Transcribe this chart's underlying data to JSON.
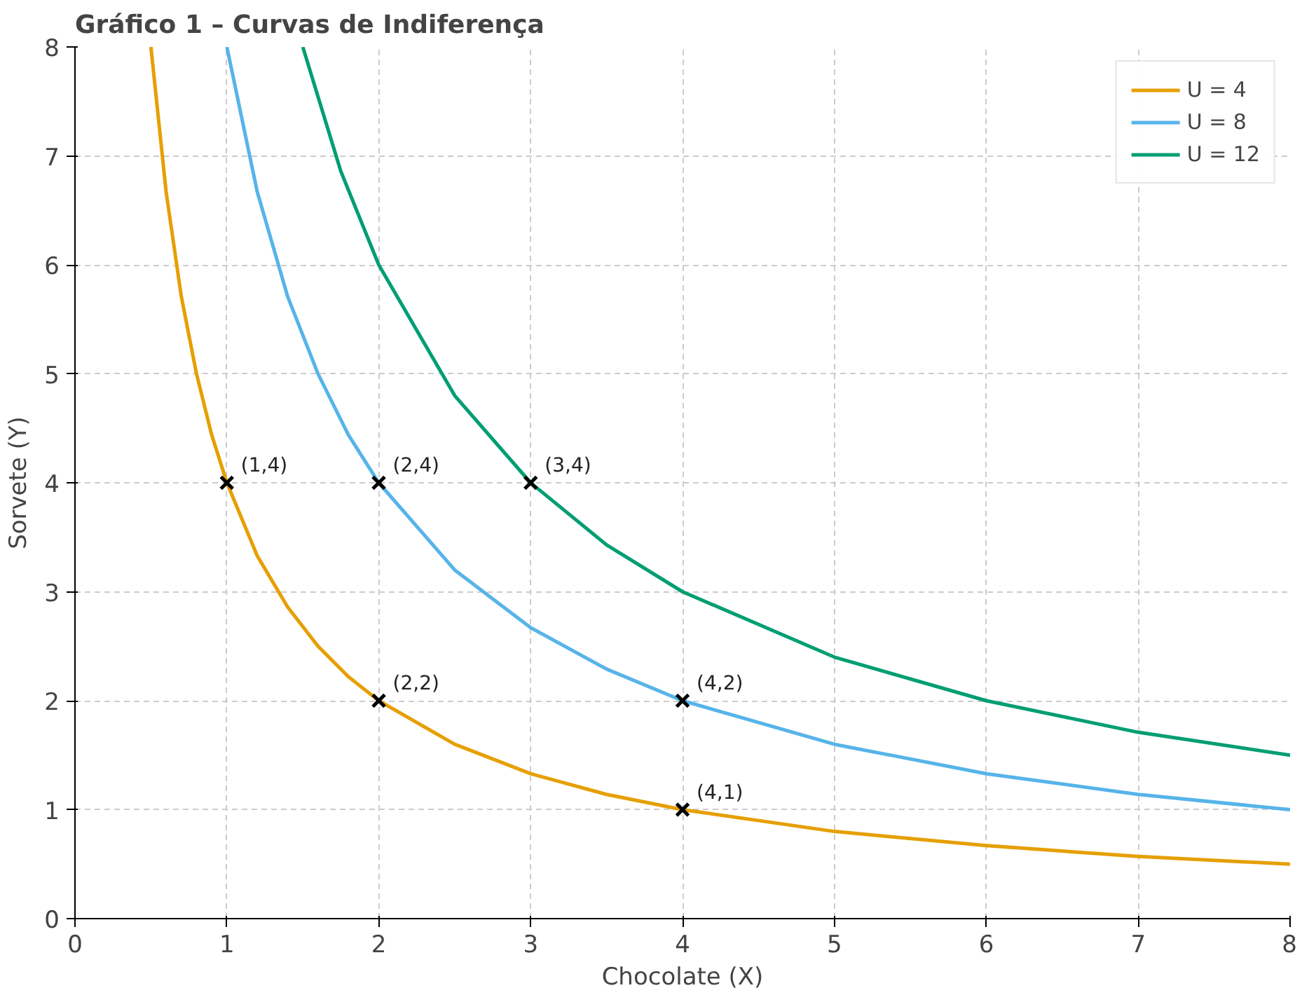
{
  "chart_data": {
    "type": "line",
    "title": "Gráfico 1 – Curvas de Indiferença",
    "xlabel": "Chocolate (X)",
    "ylabel": "Sorvete (Y)",
    "xlim": [
      0,
      8
    ],
    "ylim": [
      0,
      8
    ],
    "xticks": [
      0,
      1,
      2,
      3,
      4,
      5,
      6,
      7,
      8
    ],
    "yticks": [
      0,
      1,
      2,
      3,
      4,
      5,
      6,
      7,
      8
    ],
    "grid": true,
    "legend": "top right",
    "series": [
      {
        "name": "U = 4",
        "color": "#e69f00",
        "x": [
          0.5,
          0.6,
          0.7,
          0.8,
          0.9,
          1,
          1.2,
          1.4,
          1.6,
          1.8,
          2,
          2.5,
          3,
          3.5,
          4,
          5,
          6,
          7,
          8
        ],
        "values": [
          8,
          6.67,
          5.71,
          5,
          4.44,
          4,
          3.33,
          2.86,
          2.5,
          2.22,
          2,
          1.6,
          1.33,
          1.14,
          1,
          0.8,
          0.67,
          0.57,
          0.5
        ]
      },
      {
        "name": "U = 8",
        "color": "#56b4e9",
        "x": [
          1,
          1.2,
          1.4,
          1.6,
          1.8,
          2,
          2.5,
          3,
          3.5,
          4,
          5,
          6,
          7,
          8
        ],
        "values": [
          8,
          6.67,
          5.71,
          5,
          4.44,
          4,
          3.2,
          2.67,
          2.29,
          2,
          1.6,
          1.33,
          1.14,
          1
        ]
      },
      {
        "name": "U = 12",
        "color": "#009e73",
        "x": [
          1.5,
          1.75,
          2,
          2.5,
          3,
          3.5,
          4,
          5,
          6,
          7,
          8
        ],
        "values": [
          8,
          6.86,
          6,
          4.8,
          4,
          3.43,
          3,
          2.4,
          2,
          1.71,
          1.5
        ]
      },
      {
        "type": "scatter",
        "marker": "cross",
        "color": "#000000",
        "x": [
          1,
          2,
          3,
          2,
          4,
          4
        ],
        "values": [
          4,
          4,
          4,
          2,
          2,
          1
        ]
      }
    ],
    "annotations": [
      {
        "text": "(1,4)",
        "x": 1,
        "y": 4
      },
      {
        "text": "(2,4)",
        "x": 2,
        "y": 4
      },
      {
        "text": "(3,4)",
        "x": 3,
        "y": 4
      },
      {
        "text": "(2,2)",
        "x": 2,
        "y": 2
      },
      {
        "text": "(4,2)",
        "x": 4,
        "y": 2
      },
      {
        "text": "(4,1)",
        "x": 4,
        "y": 1
      }
    ]
  }
}
